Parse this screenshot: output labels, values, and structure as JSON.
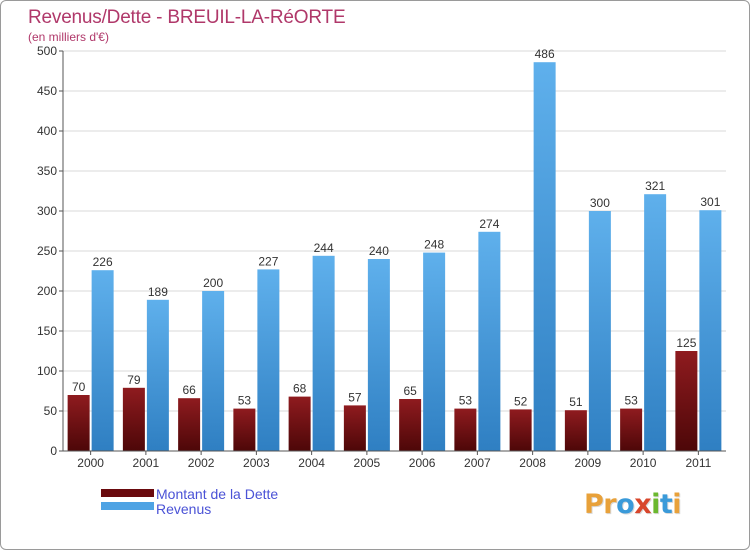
{
  "title": "Revenus/Dette - BREUIL-LA-RéORTE",
  "subtitle": "(en milliers d'€)",
  "colors": {
    "dette": "#7a0c12",
    "revenus": "#4ea3e4",
    "title": "#b0386a",
    "legend_text": "#4a52d6"
  },
  "legend": {
    "dette_label": "Montant de la Dette",
    "revenus_label": "Revenus"
  },
  "logo": {
    "text": "Proxiti",
    "letters": [
      {
        "ch": "P",
        "color": "#e8a13a"
      },
      {
        "ch": "r",
        "color": "#e8a13a"
      },
      {
        "ch": "o",
        "color": "#3a9ad9"
      },
      {
        "ch": "x",
        "color": "#d8462b"
      },
      {
        "ch": "i",
        "color": "#6bb82e"
      },
      {
        "ch": "t",
        "color": "#3a9ad9"
      },
      {
        "ch": "i",
        "color": "#e8a13a"
      }
    ]
  },
  "chart_data": {
    "type": "bar",
    "categories": [
      "2000",
      "2001",
      "2002",
      "2003",
      "2004",
      "2005",
      "2006",
      "2007",
      "2008",
      "2009",
      "2010",
      "2011"
    ],
    "series": [
      {
        "name": "Montant de la Dette",
        "values": [
          70,
          79,
          66,
          53,
          68,
          57,
          65,
          53,
          52,
          51,
          53,
          125
        ]
      },
      {
        "name": "Revenus",
        "values": [
          226,
          189,
          200,
          227,
          244,
          240,
          248,
          274,
          486,
          300,
          321,
          301
        ]
      }
    ],
    "ylim": [
      0,
      500
    ],
    "yticks": [
      0,
      50,
      100,
      150,
      200,
      250,
      300,
      350,
      400,
      450,
      500
    ],
    "grid": true,
    "legend_position": "bottom-left"
  }
}
